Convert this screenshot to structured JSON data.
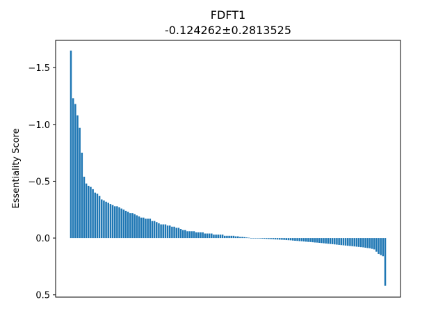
{
  "chart_data": {
    "type": "bar",
    "title": "FDFT1",
    "subtitle": "-0.124262±0.2813525",
    "xlabel": "",
    "ylabel": "Essentiality Score",
    "ylim": [
      0.52,
      -1.74
    ],
    "y_inverted": true,
    "yticks": [
      -1.5,
      -1.0,
      -0.5,
      0.0,
      0.5
    ],
    "ytick_labels": [
      "−1.5",
      "−1.0",
      "−0.5",
      "0.0",
      "0.5"
    ],
    "grid": false,
    "legend": "none",
    "bar_color": "#1f77b4",
    "values": [
      -1.65,
      -1.23,
      -1.18,
      -1.08,
      -0.97,
      -0.75,
      -0.54,
      -0.48,
      -0.46,
      -0.45,
      -0.43,
      -0.4,
      -0.39,
      -0.37,
      -0.34,
      -0.33,
      -0.32,
      -0.31,
      -0.3,
      -0.29,
      -0.28,
      -0.28,
      -0.27,
      -0.26,
      -0.25,
      -0.24,
      -0.23,
      -0.22,
      -0.22,
      -0.21,
      -0.2,
      -0.19,
      -0.18,
      -0.18,
      -0.17,
      -0.17,
      -0.17,
      -0.15,
      -0.15,
      -0.14,
      -0.13,
      -0.12,
      -0.12,
      -0.12,
      -0.11,
      -0.11,
      -0.1,
      -0.1,
      -0.09,
      -0.09,
      -0.08,
      -0.07,
      -0.07,
      -0.06,
      -0.06,
      -0.06,
      -0.06,
      -0.05,
      -0.05,
      -0.05,
      -0.05,
      -0.04,
      -0.04,
      -0.04,
      -0.04,
      -0.03,
      -0.03,
      -0.03,
      -0.03,
      -0.03,
      -0.02,
      -0.02,
      -0.02,
      -0.02,
      -0.02,
      -0.015,
      -0.015,
      -0.01,
      -0.01,
      -0.008,
      -0.005,
      -0.003,
      0.0,
      0.0,
      0.002,
      0.003,
      0.004,
      0.005,
      0.006,
      0.007,
      0.008,
      0.009,
      0.01,
      0.012,
      0.013,
      0.014,
      0.015,
      0.016,
      0.018,
      0.019,
      0.02,
      0.022,
      0.024,
      0.025,
      0.027,
      0.028,
      0.03,
      0.032,
      0.034,
      0.035,
      0.037,
      0.039,
      0.04,
      0.042,
      0.044,
      0.046,
      0.048,
      0.05,
      0.052,
      0.054,
      0.056,
      0.058,
      0.06,
      0.062,
      0.064,
      0.066,
      0.068,
      0.07,
      0.072,
      0.074,
      0.076,
      0.078,
      0.08,
      0.082,
      0.085,
      0.088,
      0.09,
      0.095,
      0.1,
      0.12,
      0.14,
      0.15,
      0.16,
      0.42
    ]
  }
}
